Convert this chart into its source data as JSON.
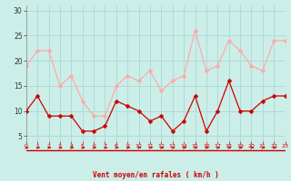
{
  "x": [
    0,
    1,
    2,
    3,
    4,
    5,
    6,
    7,
    8,
    9,
    10,
    11,
    12,
    13,
    14,
    15,
    16,
    17,
    18,
    19,
    20,
    21,
    22,
    23
  ],
  "wind_avg": [
    10,
    13,
    9,
    9,
    9,
    6,
    6,
    7,
    12,
    11,
    10,
    8,
    9,
    6,
    8,
    13,
    6,
    10,
    16,
    10,
    10,
    12,
    13,
    13
  ],
  "wind_gust": [
    19,
    22,
    22,
    15,
    17,
    12,
    9,
    9,
    15,
    17,
    16,
    18,
    14,
    16,
    17,
    26,
    18,
    19,
    24,
    22,
    19,
    18,
    24,
    24
  ],
  "xlabel": "Vent moyen/en rafales ( km/h )",
  "bg_color": "#cceee8",
  "grid_color": "#aad8d4",
  "line_avg_color": "#cc0000",
  "line_gust_color": "#ffaaaa",
  "marker": "D",
  "marker_size": 2.5,
  "ylim": [
    4,
    31
  ],
  "xlim": [
    0,
    23
  ],
  "yticks": [
    5,
    10,
    15,
    20,
    25,
    30
  ],
  "xticks": [
    0,
    1,
    2,
    3,
    4,
    5,
    6,
    7,
    8,
    9,
    10,
    11,
    12,
    13,
    14,
    15,
    16,
    17,
    18,
    19,
    20,
    21,
    22,
    23
  ]
}
